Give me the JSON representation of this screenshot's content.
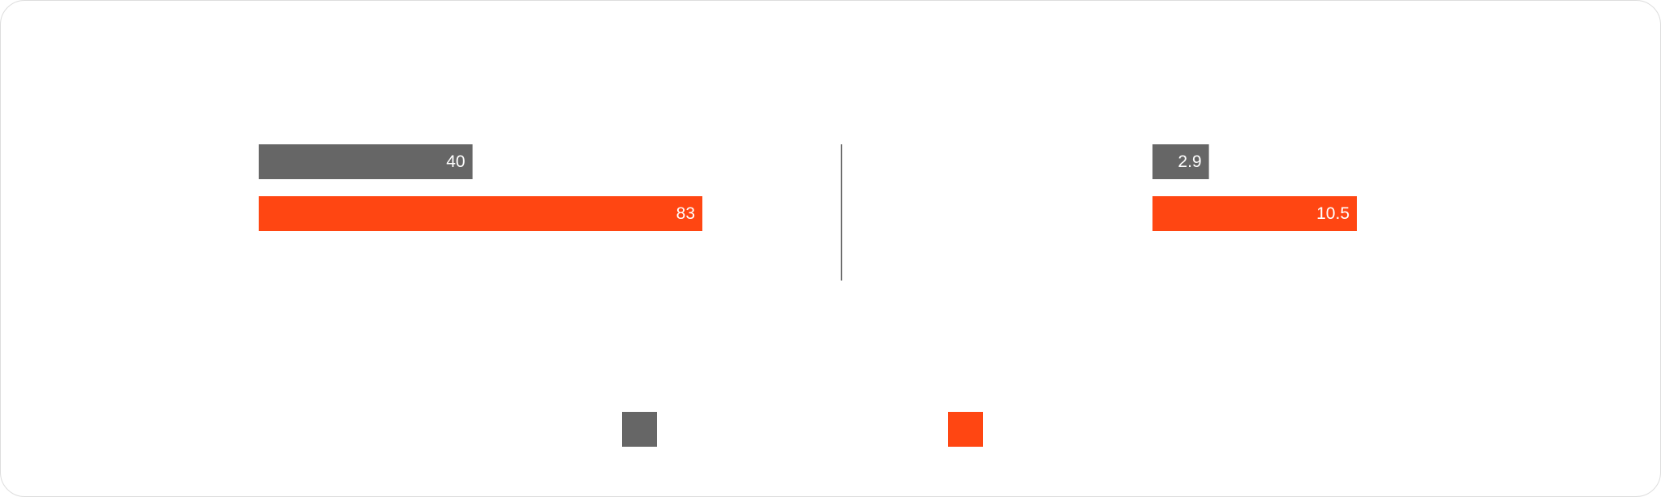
{
  "chart_data": [
    {
      "type": "bar",
      "orientation": "horizontal",
      "series": [
        {
          "color": "#666666",
          "values": [
            40
          ]
        },
        {
          "color": "#ff4612",
          "values": [
            83
          ]
        }
      ]
    },
    {
      "type": "bar",
      "orientation": "horizontal",
      "series": [
        {
          "color": "#666666",
          "values": [
            2.9
          ]
        },
        {
          "color": "#ff4612",
          "values": [
            10.5
          ]
        }
      ]
    }
  ]
}
